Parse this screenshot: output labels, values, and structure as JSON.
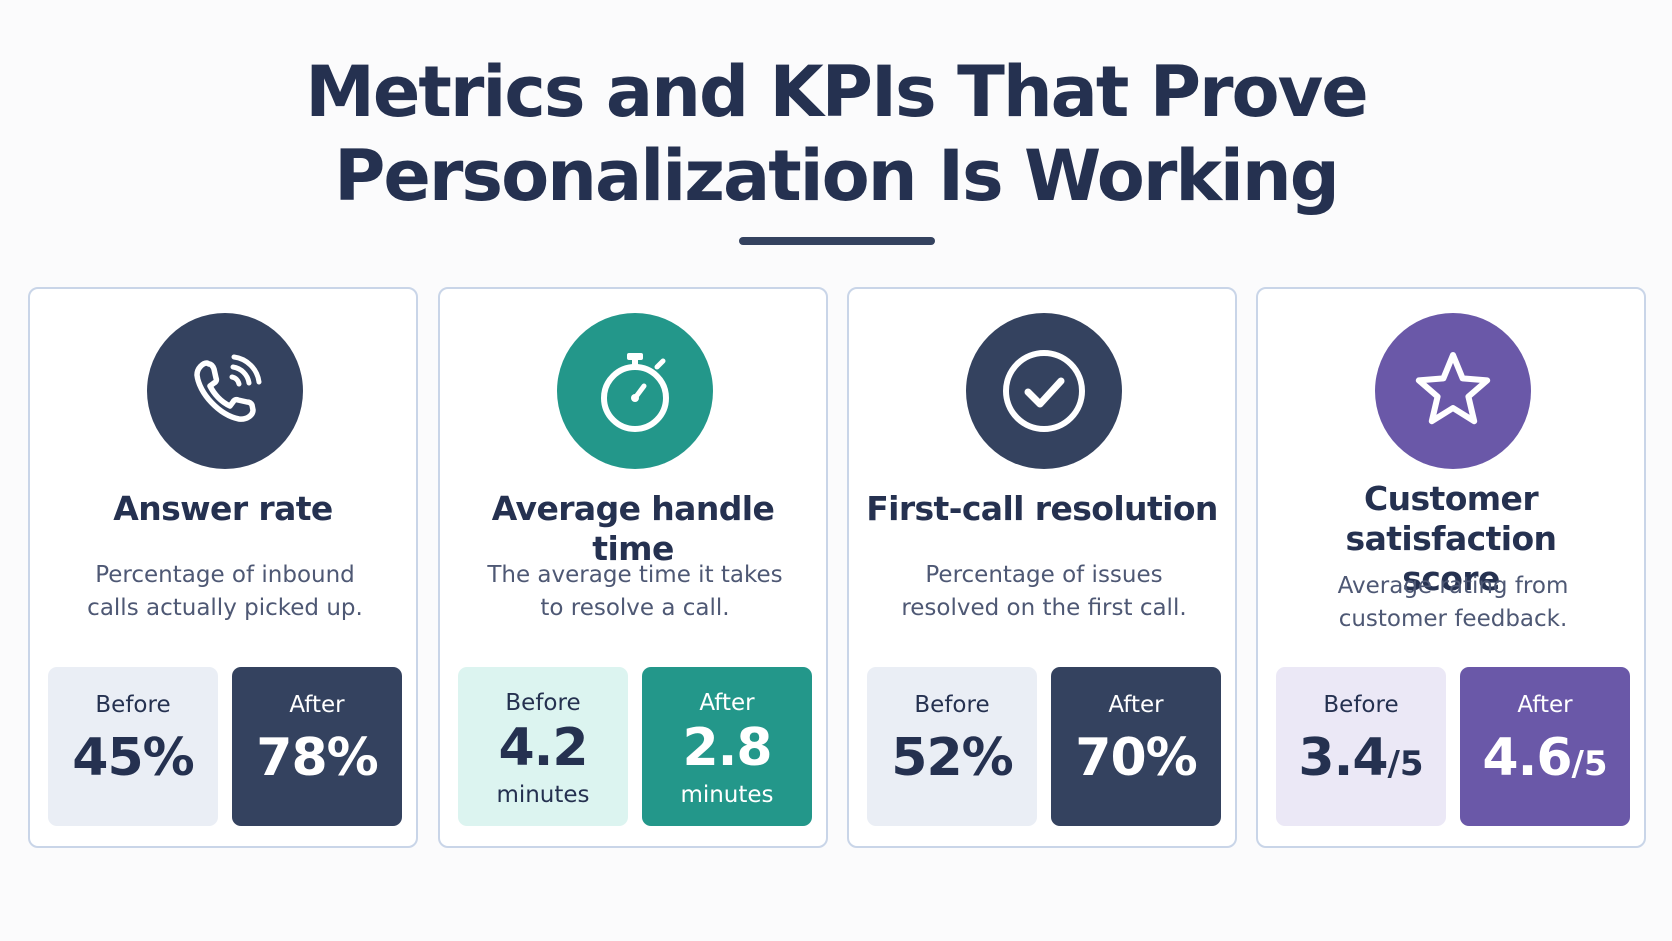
{
  "title": {
    "line1": "Metrics and KPIs That Prove",
    "line2": "Personalization Is Working"
  },
  "colors": {
    "navy": "#34425f",
    "teal": "#23978a",
    "purple": "#6a58a8",
    "before_gray": "#eaeef5",
    "before_teal": "#dcf4f0",
    "before_purple": "#ebe8f6"
  },
  "cards": [
    {
      "icon": "phone-ringing-icon",
      "title": "Answer rate",
      "description_line1": "Percentage of inbound",
      "description_line2": "calls actually picked up.",
      "before_label": "Before",
      "before_value": "45%",
      "after_label": "After",
      "after_value": "78%"
    },
    {
      "icon": "stopwatch-icon",
      "title": "Average handle time",
      "description_line1": "The average time it takes",
      "description_line2": "to resolve a call.",
      "before_label": "Before",
      "before_value": "4.2",
      "before_unit": "minutes",
      "after_label": "After",
      "after_value": "2.8",
      "after_unit": "minutes"
    },
    {
      "icon": "check-circle-icon",
      "title": "First-call resolution",
      "description_line1": "Percentage of issues",
      "description_line2": "resolved on the first call.",
      "before_label": "Before",
      "before_value": "52%",
      "after_label": "After",
      "after_value": "70%"
    },
    {
      "icon": "star-icon",
      "title_line1": "Customer satisfaction",
      "title_line2": "score",
      "description_line1": "Average rating from",
      "description_line2": "customer feedback.",
      "before_label": "Before",
      "before_value": "3.4",
      "before_denominator": "/5",
      "after_label": "After",
      "after_value": "4.6",
      "after_denominator": "/5"
    }
  ]
}
